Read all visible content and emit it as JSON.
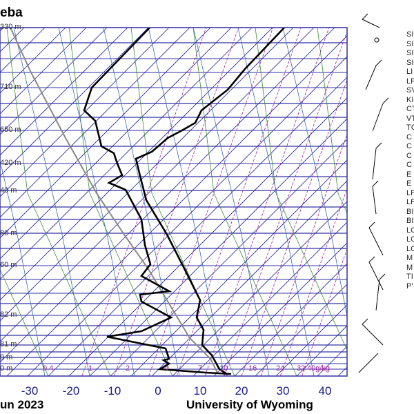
{
  "title": "eba",
  "footer": {
    "date": "un 2023",
    "source": "University of Wyoming"
  },
  "chart_data": {
    "type": "line",
    "subtype": "skew-t log-p sounding",
    "xlabel": "Temperature (°C)",
    "x_ticks": [
      "-30",
      "-20",
      "-10",
      "0",
      "10",
      "20",
      "30",
      "40"
    ],
    "xlim": [
      -37,
      45
    ],
    "height_labels": [
      "330 m",
      "710 m",
      "650 m",
      "420 m",
      "40 m",
      "80 m",
      "60 m",
      "82 m",
      "81 m",
      "9 m",
      "0 m"
    ],
    "mixing_ratio_labels": [
      "0.4",
      "1",
      "2",
      "4",
      "7",
      "10",
      "16",
      "24",
      "32",
      "40g/kg"
    ],
    "series": [
      {
        "name": "temperature"
      },
      {
        "name": "dewpoint"
      },
      {
        "name": "parcel path"
      }
    ],
    "colors": {
      "isobar": "#3030a0",
      "isotherm": "#2020a0",
      "dry_adiabat": "#3a8a3a",
      "moist_adiabat": "#3a6ab0",
      "mixing_ratio": "#a020a0",
      "parcel": "#888888"
    }
  },
  "indices": [
    "SI",
    "SI",
    "SI",
    "SI",
    "LI",
    "LF",
    "SV",
    "KI",
    "CT",
    "VT",
    "TC",
    "C",
    "C",
    "C",
    "C",
    "E",
    "E",
    "LF",
    "LF",
    "BI",
    "BI",
    "LC",
    "LC",
    "LC",
    "M",
    "M",
    "TI",
    "P'"
  ]
}
